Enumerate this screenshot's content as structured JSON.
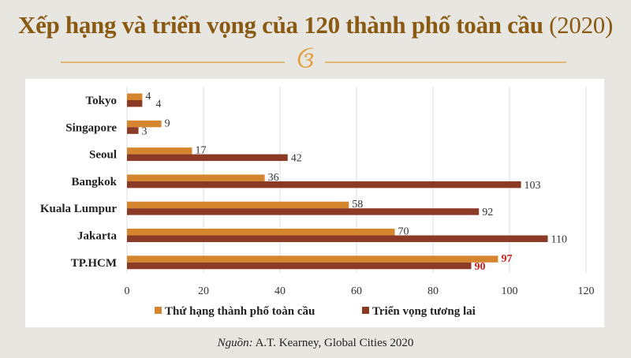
{
  "title": "Xếp hạng và triển vọng của 120 thành phố toàn cầu",
  "title_year": "(2020)",
  "ornament": "ઉ",
  "source_label": "Nguồn:",
  "source_text": " A.T. Kearney, Global Cities 2020",
  "chart_data": {
    "type": "bar",
    "orientation": "horizontal",
    "categories": [
      "Tokyo",
      "Singapore",
      "Seoul",
      "Bangkok",
      "Kuala Lumpur",
      "Jakarta",
      "TP.HCM"
    ],
    "series": [
      {
        "name": "Thứ hạng thành phố toàn cầu",
        "values": [
          4,
          9,
          17,
          36,
          58,
          70,
          97
        ],
        "color": "#d4852e"
      },
      {
        "name": "Triển vọng tương lai",
        "values": [
          4,
          3,
          42,
          103,
          92,
          110,
          90
        ],
        "color": "#8b3a25"
      }
    ],
    "xlim": [
      0,
      120
    ],
    "xticks": [
      0,
      20,
      40,
      60,
      80,
      100,
      120
    ],
    "grid": true,
    "legend": "bottom",
    "highlight_category": "TP.HCM",
    "highlight_label_color": "#cc1f1f"
  }
}
